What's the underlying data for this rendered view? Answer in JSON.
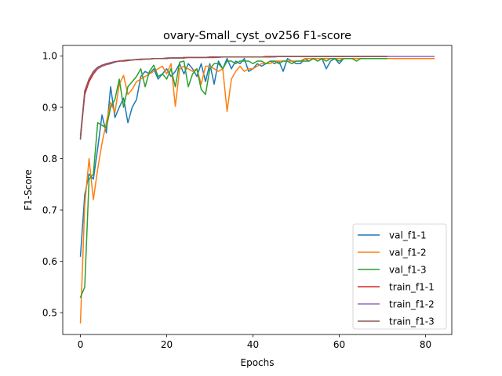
{
  "chart_data": {
    "type": "line",
    "title": "ovary-Small_cyst_ov256 F1-score",
    "xlabel": "Epochs",
    "ylabel": "F1-Score",
    "xlim": [
      -4.1,
      86.1
    ],
    "ylim": [
      0.4575,
      1.0205
    ],
    "xticks": [
      0,
      20,
      40,
      60,
      80
    ],
    "yticks": [
      0.5,
      0.6,
      0.7,
      0.8,
      0.9,
      1.0
    ],
    "xtick_labels": [
      "0",
      "20",
      "40",
      "60",
      "80"
    ],
    "ytick_labels": [
      "0.5",
      "0.6",
      "0.7",
      "0.8",
      "0.9",
      "1.0"
    ],
    "grid": false,
    "legend_position": "lower-right",
    "series": [
      {
        "name": "val_f1-1",
        "color": "#1f77b4",
        "x": [
          0,
          1,
          2,
          3,
          4,
          5,
          6,
          7,
          8,
          9,
          10,
          11,
          12,
          13,
          14,
          15,
          16,
          17,
          18,
          19,
          20,
          21,
          22,
          23,
          24,
          25,
          26,
          27,
          28,
          29,
          30,
          31,
          32,
          33,
          34,
          35,
          36,
          37,
          38,
          39,
          40,
          41,
          42,
          43,
          44,
          45,
          46,
          47,
          48,
          49,
          50,
          51,
          52,
          53,
          54,
          55,
          56,
          57,
          58,
          59,
          60,
          61,
          62,
          63,
          64,
          65,
          66,
          67,
          68,
          69,
          70,
          71
        ],
        "y": [
          0.61,
          0.73,
          0.77,
          0.76,
          0.82,
          0.885,
          0.85,
          0.94,
          0.88,
          0.9,
          0.918,
          0.87,
          0.9,
          0.915,
          0.96,
          0.97,
          0.965,
          0.975,
          0.955,
          0.965,
          0.975,
          0.96,
          0.97,
          0.985,
          0.965,
          0.985,
          0.975,
          0.96,
          0.985,
          0.95,
          0.985,
          0.945,
          0.99,
          0.975,
          0.995,
          0.975,
          0.99,
          0.985,
          0.995,
          0.97,
          0.975,
          0.985,
          0.98,
          0.985,
          0.99,
          0.985,
          0.99,
          0.97,
          0.995,
          0.99,
          0.985,
          0.985,
          0.995,
          0.99,
          0.995,
          0.99,
          0.995,
          0.975,
          0.99,
          0.995,
          0.985,
          0.995,
          0.995,
          0.995,
          0.995,
          0.995,
          0.995,
          0.995,
          0.995,
          0.995,
          0.995,
          0.995
        ]
      },
      {
        "name": "val_f1-2",
        "color": "#ff7f0e",
        "x": [
          0,
          1,
          2,
          3,
          4,
          5,
          6,
          7,
          8,
          9,
          10,
          11,
          12,
          13,
          14,
          15,
          16,
          17,
          18,
          19,
          20,
          21,
          22,
          23,
          24,
          25,
          26,
          27,
          28,
          29,
          30,
          31,
          32,
          33,
          34,
          35,
          36,
          37,
          38,
          39,
          40,
          41,
          42,
          43,
          44,
          45,
          46,
          47,
          48,
          49,
          50,
          51,
          52,
          53,
          54,
          55,
          56,
          57,
          58,
          59,
          60,
          61,
          62,
          63,
          64,
          65,
          66,
          67,
          68,
          69,
          70,
          71,
          72,
          73,
          74,
          75,
          76,
          77,
          78,
          79,
          80,
          81,
          82
        ],
        "y": [
          0.48,
          0.71,
          0.8,
          0.72,
          0.78,
          0.83,
          0.87,
          0.91,
          0.89,
          0.945,
          0.962,
          0.925,
          0.935,
          0.95,
          0.955,
          0.96,
          0.965,
          0.97,
          0.975,
          0.98,
          0.965,
          0.985,
          0.902,
          0.975,
          0.98,
          0.975,
          0.97,
          0.975,
          0.945,
          0.98,
          0.98,
          0.975,
          0.97,
          0.975,
          0.892,
          0.955,
          0.97,
          0.98,
          0.97,
          0.975,
          0.975,
          0.98,
          0.985,
          0.985,
          0.985,
          0.99,
          0.99,
          0.99,
          0.99,
          0.99,
          0.99,
          0.99,
          0.995,
          0.995,
          0.995,
          0.995,
          0.995,
          0.995,
          0.995,
          0.995,
          0.995,
          0.995,
          0.995,
          0.995,
          0.995,
          0.995,
          0.995,
          0.995,
          0.995,
          0.995,
          0.995,
          0.995,
          0.995,
          0.995,
          0.995,
          0.995,
          0.995,
          0.995,
          0.995,
          0.995,
          0.995,
          0.995,
          0.995
        ]
      },
      {
        "name": "val_f1-3",
        "color": "#2ca02c",
        "x": [
          0,
          1,
          2,
          3,
          4,
          5,
          6,
          7,
          8,
          9,
          10,
          11,
          12,
          13,
          14,
          15,
          16,
          17,
          18,
          19,
          20,
          21,
          22,
          23,
          24,
          25,
          26,
          27,
          28,
          29,
          30,
          31,
          32,
          33,
          34,
          35,
          36,
          37,
          38,
          39,
          40,
          41,
          42,
          43,
          44,
          45,
          46,
          47,
          48,
          49,
          50,
          51,
          52,
          53,
          54,
          55,
          56,
          57,
          58,
          59,
          60,
          61,
          62,
          63,
          64,
          65,
          66,
          67,
          68,
          69,
          70,
          71
        ],
        "y": [
          0.53,
          0.55,
          0.76,
          0.77,
          0.87,
          0.865,
          0.86,
          0.9,
          0.915,
          0.955,
          0.9,
          0.94,
          0.95,
          0.96,
          0.975,
          0.94,
          0.97,
          0.982,
          0.96,
          0.965,
          0.955,
          0.975,
          0.94,
          0.988,
          0.99,
          0.94,
          0.965,
          0.975,
          0.935,
          0.925,
          0.975,
          0.985,
          0.985,
          0.975,
          0.99,
          0.99,
          0.985,
          0.99,
          0.99,
          0.99,
          0.985,
          0.99,
          0.99,
          0.985,
          0.99,
          0.99,
          0.985,
          0.99,
          0.99,
          0.985,
          0.99,
          0.99,
          0.99,
          0.99,
          0.995,
          0.99,
          0.995,
          0.99,
          0.995,
          0.995,
          0.99,
          0.995,
          0.995,
          0.995,
          0.99,
          0.995,
          0.995,
          0.995,
          0.995,
          0.995,
          0.995,
          0.995
        ]
      },
      {
        "name": "train_f1-1",
        "color": "#d62728",
        "x": [
          0,
          1,
          2,
          3,
          4,
          5,
          6,
          7,
          8,
          9,
          10,
          11,
          12,
          13,
          14,
          15,
          16,
          17,
          18,
          19,
          20,
          21,
          22,
          23,
          24,
          25,
          26,
          27,
          28,
          29,
          30,
          31,
          32,
          33,
          34,
          35,
          36,
          37,
          38,
          39,
          40,
          41,
          42,
          43,
          44,
          45,
          46,
          47,
          48,
          49,
          50,
          51,
          52,
          53,
          54,
          55,
          56,
          57,
          58,
          59,
          60,
          61,
          62,
          63,
          64,
          65,
          66,
          67,
          68,
          69,
          70,
          71
        ],
        "y": [
          0.84,
          0.925,
          0.95,
          0.965,
          0.975,
          0.98,
          0.983,
          0.985,
          0.988,
          0.99,
          0.99,
          0.991,
          0.992,
          0.993,
          0.993,
          0.994,
          0.994,
          0.995,
          0.995,
          0.995,
          0.996,
          0.996,
          0.996,
          0.996,
          0.997,
          0.997,
          0.997,
          0.997,
          0.997,
          0.997,
          0.998,
          0.998,
          0.998,
          0.998,
          0.998,
          0.998,
          0.998,
          0.998,
          0.998,
          0.998,
          0.998,
          0.998,
          0.998,
          0.999,
          0.999,
          0.999,
          0.999,
          0.999,
          0.999,
          0.999,
          0.999,
          0.999,
          0.999,
          0.999,
          0.999,
          0.999,
          0.999,
          0.999,
          0.999,
          0.999,
          0.999,
          0.999,
          0.999,
          0.999,
          0.999,
          0.999,
          0.999,
          0.999,
          0.999,
          0.999,
          0.999,
          0.999
        ]
      },
      {
        "name": "train_f1-2",
        "color": "#9467bd",
        "x": [
          0,
          1,
          2,
          3,
          4,
          5,
          6,
          7,
          8,
          9,
          10,
          11,
          12,
          13,
          14,
          15,
          16,
          17,
          18,
          19,
          20,
          21,
          22,
          23,
          24,
          25,
          26,
          27,
          28,
          29,
          30,
          31,
          32,
          33,
          34,
          35,
          36,
          37,
          38,
          39,
          40,
          41,
          42,
          43,
          44,
          45,
          46,
          47,
          48,
          49,
          50,
          51,
          52,
          53,
          54,
          55,
          56,
          57,
          58,
          59,
          60,
          61,
          62,
          63,
          64,
          65,
          66,
          67,
          68,
          69,
          70,
          71,
          72,
          73,
          74,
          75,
          76,
          77,
          78,
          79,
          80,
          81,
          82
        ],
        "y": [
          0.845,
          0.93,
          0.955,
          0.968,
          0.976,
          0.981,
          0.984,
          0.986,
          0.988,
          0.99,
          0.991,
          0.992,
          0.992,
          0.993,
          0.994,
          0.994,
          0.994,
          0.995,
          0.995,
          0.995,
          0.996,
          0.996,
          0.996,
          0.996,
          0.996,
          0.997,
          0.997,
          0.997,
          0.997,
          0.997,
          0.997,
          0.997,
          0.997,
          0.998,
          0.998,
          0.998,
          0.998,
          0.998,
          0.998,
          0.998,
          0.998,
          0.998,
          0.998,
          0.998,
          0.998,
          0.998,
          0.999,
          0.999,
          0.999,
          0.999,
          0.999,
          0.999,
          0.999,
          0.999,
          0.999,
          0.999,
          0.999,
          0.999,
          0.999,
          0.999,
          0.999,
          0.999,
          0.999,
          0.999,
          0.999,
          0.999,
          0.999,
          0.999,
          0.999,
          0.999,
          0.999,
          0.999,
          0.999,
          0.999,
          0.999,
          0.999,
          0.999,
          0.999,
          0.999,
          0.999,
          0.999,
          0.999,
          0.999
        ]
      },
      {
        "name": "train_f1-3",
        "color": "#8c564b",
        "x": [
          0,
          1,
          2,
          3,
          4,
          5,
          6,
          7,
          8,
          9,
          10,
          11,
          12,
          13,
          14,
          15,
          16,
          17,
          18,
          19,
          20,
          21,
          22,
          23,
          24,
          25,
          26,
          27,
          28,
          29,
          30,
          31,
          32,
          33,
          34,
          35,
          36,
          37,
          38,
          39,
          40,
          41,
          42,
          43,
          44,
          45,
          46,
          47,
          48,
          49,
          50,
          51,
          52,
          53,
          54,
          55,
          56,
          57,
          58,
          59,
          60,
          61,
          62,
          63,
          64,
          65,
          66,
          67,
          68,
          69,
          70,
          71
        ],
        "y": [
          0.838,
          0.932,
          0.955,
          0.97,
          0.978,
          0.982,
          0.985,
          0.987,
          0.989,
          0.99,
          0.991,
          0.992,
          0.992,
          0.993,
          0.993,
          0.994,
          0.994,
          0.995,
          0.995,
          0.995,
          0.995,
          0.996,
          0.996,
          0.996,
          0.996,
          0.997,
          0.997,
          0.997,
          0.997,
          0.997,
          0.997,
          0.997,
          0.998,
          0.998,
          0.998,
          0.998,
          0.998,
          0.998,
          0.998,
          0.998,
          0.998,
          0.998,
          0.998,
          0.998,
          0.998,
          0.999,
          0.999,
          0.999,
          0.999,
          0.999,
          0.999,
          0.999,
          0.999,
          0.999,
          0.999,
          0.999,
          0.999,
          0.999,
          0.999,
          0.999,
          0.999,
          0.999,
          0.999,
          0.999,
          0.999,
          0.999,
          0.999,
          0.999,
          0.999,
          0.999,
          0.999,
          0.999
        ]
      }
    ]
  }
}
